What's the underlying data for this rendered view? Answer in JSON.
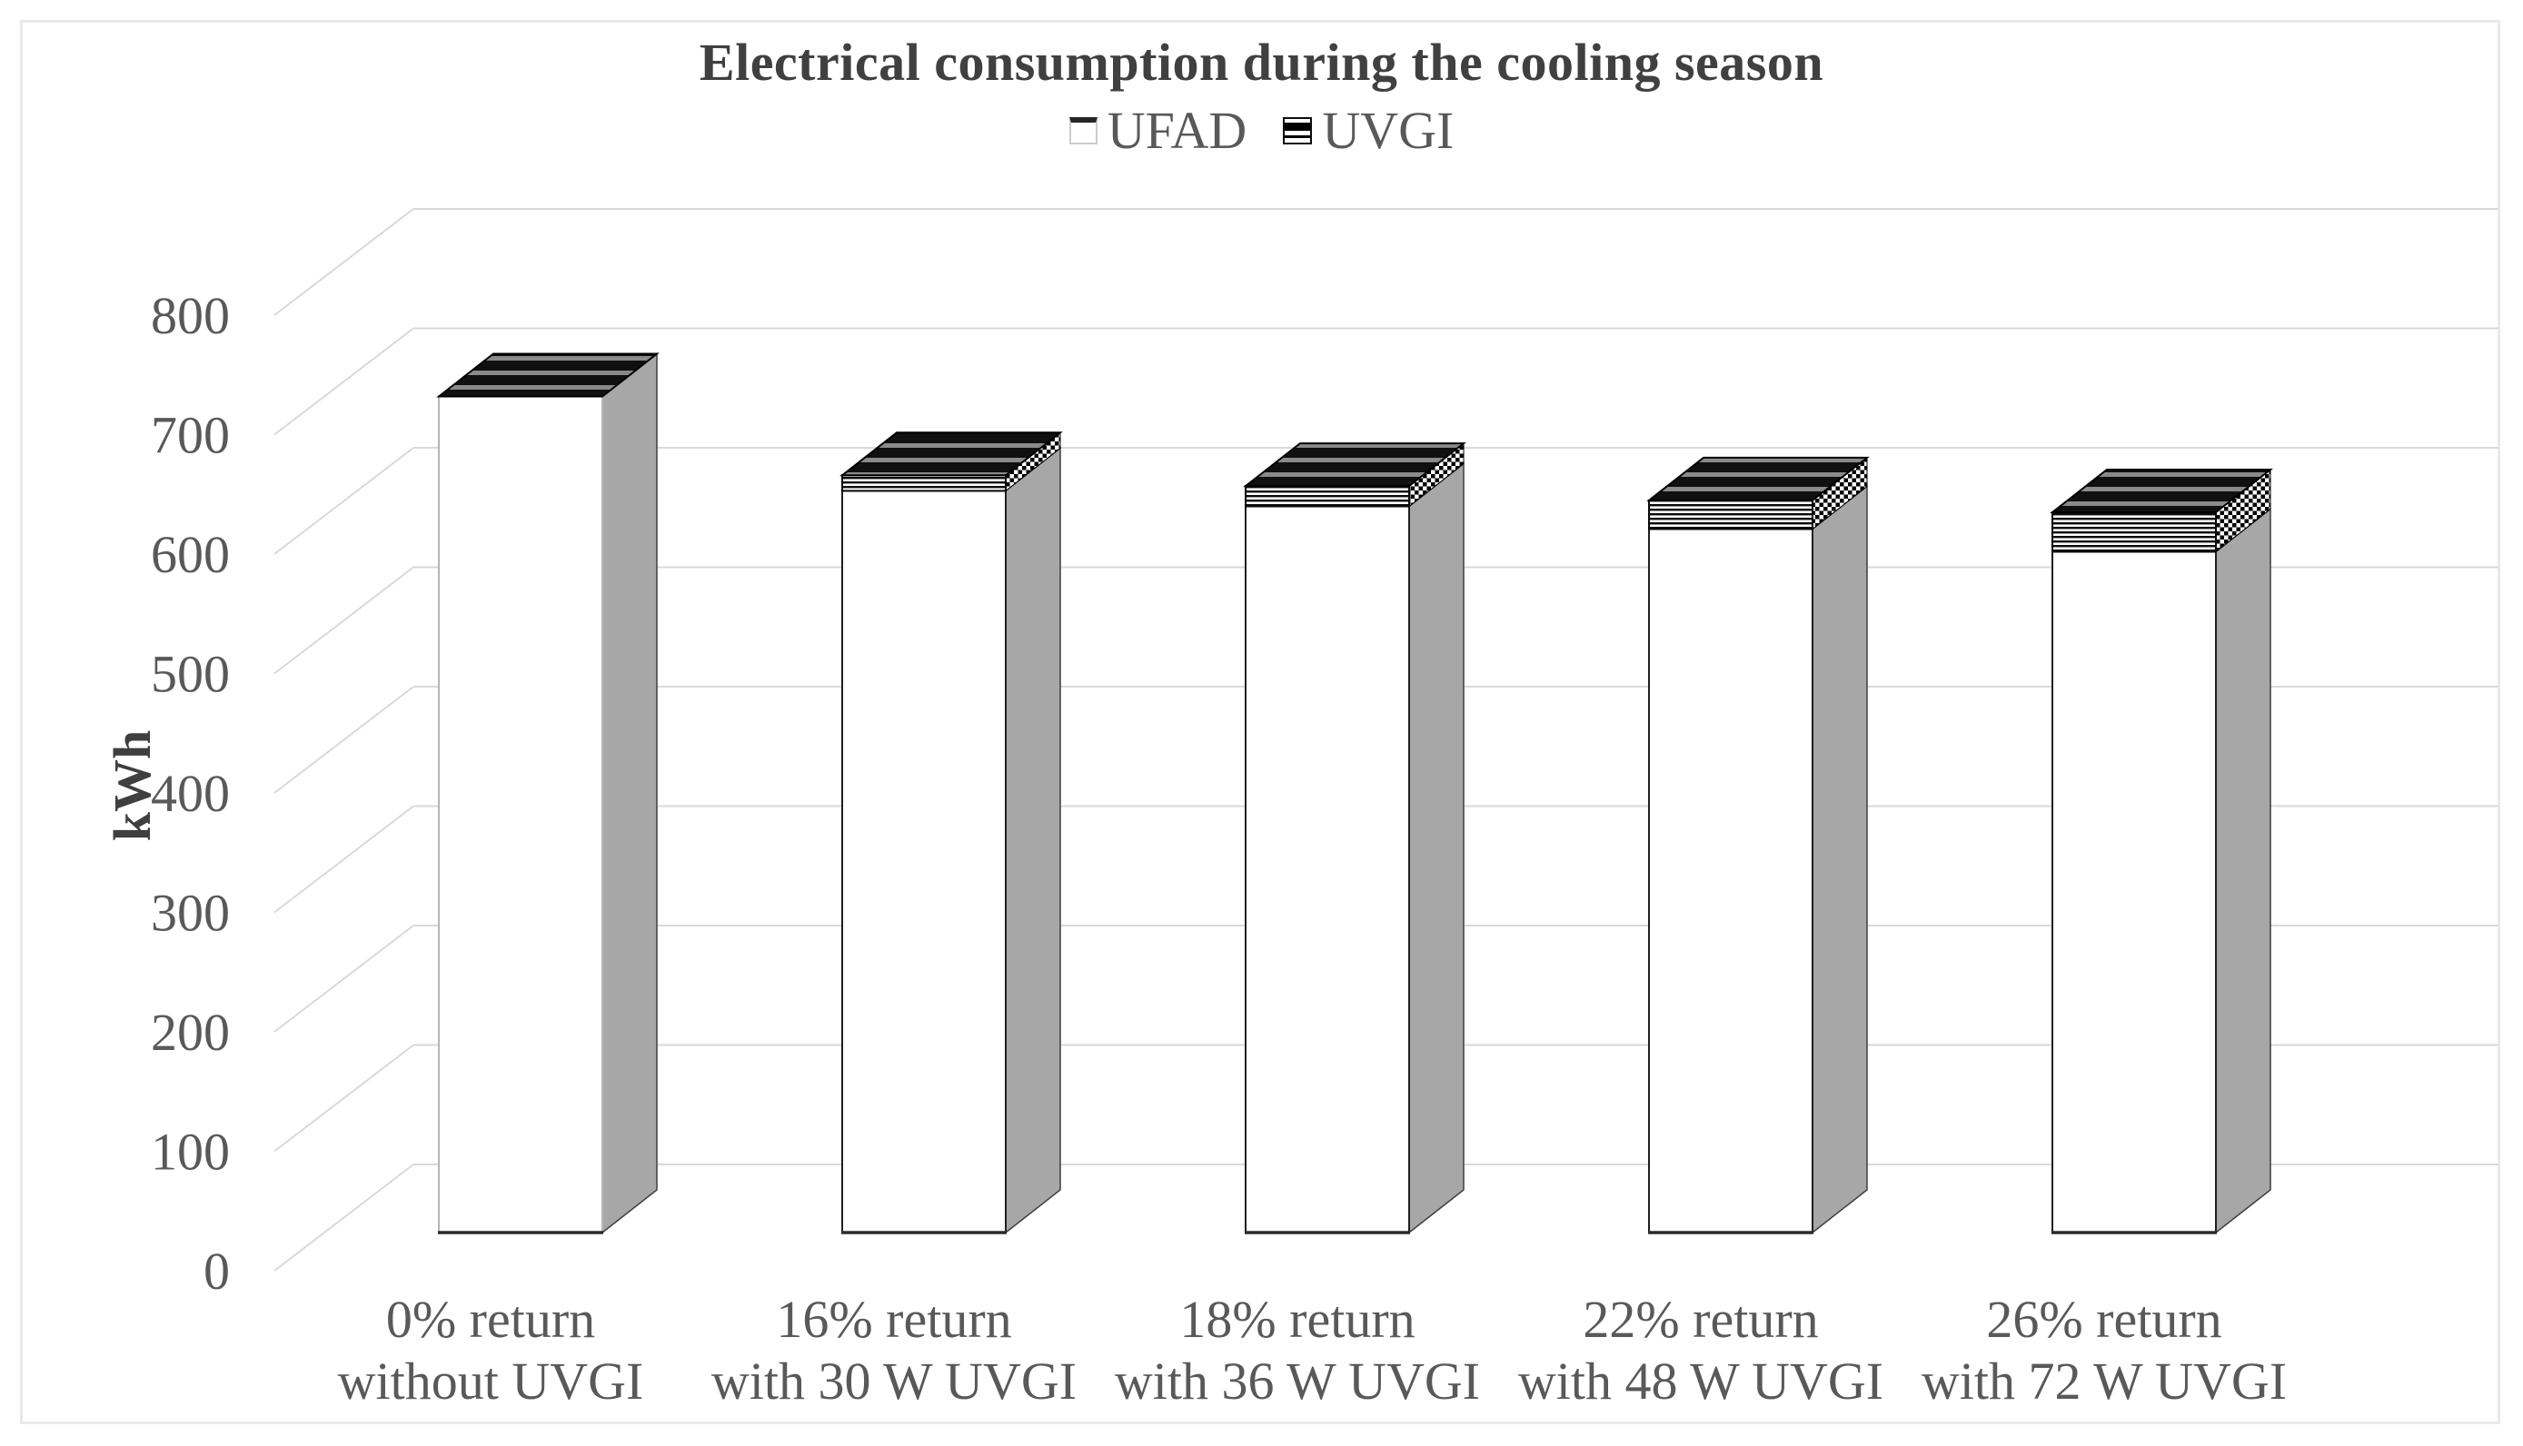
{
  "figure": {
    "background": "#ffffff",
    "border_color": "#e9e9e9"
  },
  "chart_data": {
    "type": "bar",
    "subtype": "3d-stacked-column",
    "title": "Electrical consumption during the cooling season",
    "ylabel": "kWh",
    "ylim": [
      0,
      800
    ],
    "ytick_step": 100,
    "yticks": [
      0,
      100,
      200,
      300,
      400,
      500,
      600,
      700,
      800
    ],
    "grid": true,
    "legend_position": "top-center",
    "categories": [
      [
        "0% return",
        "without UVGI"
      ],
      [
        "16% return",
        "with 30 W UVGI"
      ],
      [
        "18% return",
        "with 36 W UVGI"
      ],
      [
        "22% return",
        "with 48 W UVGI"
      ],
      [
        "26% return",
        "with 72 W UVGI"
      ]
    ],
    "series": [
      {
        "name": "UFAD",
        "values": [
          700,
          621,
          608,
          589,
          570
        ],
        "fill": "white",
        "pattern": "solid-3d"
      },
      {
        "name": "UVGI",
        "values": [
          0,
          13,
          17,
          24,
          33
        ],
        "fill": "horizontal-stripes",
        "pattern": "black-horizontal-lines"
      }
    ],
    "colors": {
      "ufad_front": "#ffffff",
      "ufad_side": "#a7a7a7",
      "stripe_black": "#0a0a0a",
      "gridline": "#d9d9d9",
      "tick_text": "#595959",
      "category_text": "#595959",
      "title_text": "#404040",
      "axis_title_text": "#3f3f3f"
    }
  }
}
